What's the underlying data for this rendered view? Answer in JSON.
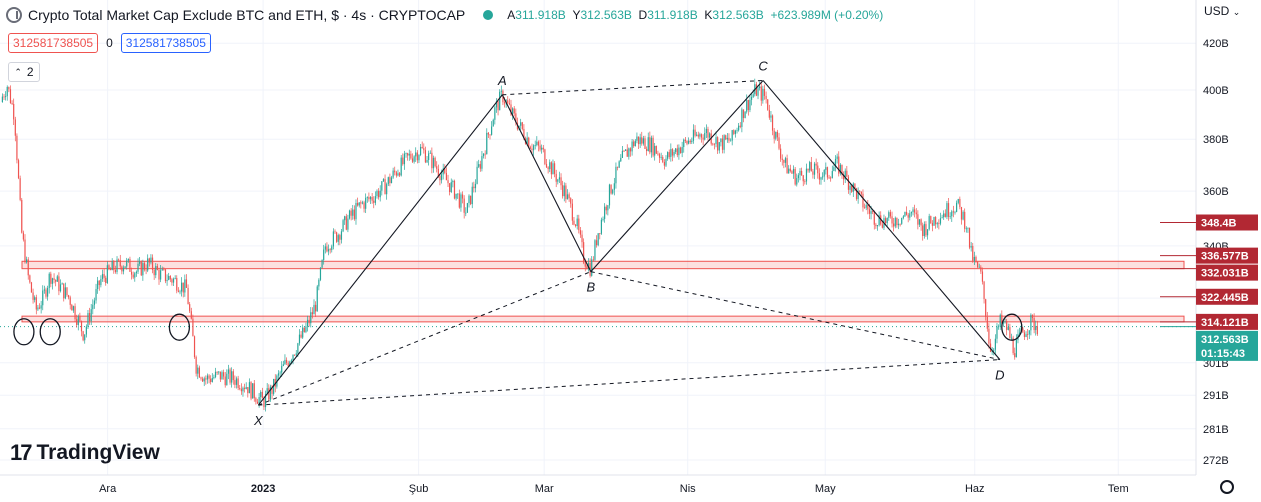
{
  "header": {
    "symbol_title": "Crypto Total Market Cap Exclude BTC and ETH, $ · 4s · CRYPTOCAP",
    "ohlc": [
      {
        "k": "A",
        "v": "311.918B"
      },
      {
        "k": "Y",
        "v": "312.563B"
      },
      {
        "k": "D",
        "v": "311.918B"
      },
      {
        "k": "K",
        "v": "312.563B"
      },
      {
        "k": "",
        "v": "+623.989M (+0.20%)"
      }
    ],
    "indicator_values": [
      "312581738505",
      "0",
      "312581738505"
    ],
    "collapse_label": "2",
    "currency": "USD",
    "brand_mark": "17",
    "brand": "TradingView"
  },
  "chart_data": {
    "type": "line",
    "title": "Crypto Total Market Cap Exclude BTC and ETH",
    "scale": "log",
    "ylim": [
      268,
      440
    ],
    "y_ticks": [
      272,
      281,
      291,
      301,
      322,
      340,
      360,
      380,
      400,
      420
    ],
    "y_tick_labels": [
      "272B",
      "281B",
      "291B",
      "301B",
      "322B",
      "340B",
      "360B",
      "380B",
      "400B",
      "420B"
    ],
    "x_ticks": [
      {
        "label": "Ara",
        "at": 0.09
      },
      {
        "label": "2023",
        "at": 0.22
      },
      {
        "label": "Şub",
        "at": 0.35
      },
      {
        "label": "Mar",
        "at": 0.455
      },
      {
        "label": "Nis",
        "at": 0.575
      },
      {
        "label": "May",
        "at": 0.69
      },
      {
        "label": "Haz",
        "at": 0.815
      },
      {
        "label": "Tem",
        "at": 0.935
      }
    ],
    "price_path": [
      [
        0.0,
        395
      ],
      [
        0.006,
        402
      ],
      [
        0.012,
        390
      ],
      [
        0.018,
        345
      ],
      [
        0.024,
        328
      ],
      [
        0.03,
        318
      ],
      [
        0.036,
        322
      ],
      [
        0.042,
        330
      ],
      [
        0.05,
        326
      ],
      [
        0.058,
        322
      ],
      [
        0.064,
        316
      ],
      [
        0.07,
        310
      ],
      [
        0.076,
        318
      ],
      [
        0.084,
        328
      ],
      [
        0.094,
        332
      ],
      [
        0.104,
        334
      ],
      [
        0.114,
        331
      ],
      [
        0.124,
        334
      ],
      [
        0.134,
        330
      ],
      [
        0.146,
        328
      ],
      [
        0.156,
        325
      ],
      [
        0.164,
        300
      ],
      [
        0.172,
        296
      ],
      [
        0.184,
        297
      ],
      [
        0.196,
        296
      ],
      [
        0.206,
        294
      ],
      [
        0.214,
        291
      ],
      [
        0.22,
        289
      ],
      [
        0.228,
        293
      ],
      [
        0.236,
        299
      ],
      [
        0.246,
        305
      ],
      [
        0.256,
        312
      ],
      [
        0.264,
        320
      ],
      [
        0.272,
        340
      ],
      [
        0.282,
        344
      ],
      [
        0.292,
        350
      ],
      [
        0.302,
        355
      ],
      [
        0.312,
        358
      ],
      [
        0.322,
        362
      ],
      [
        0.332,
        368
      ],
      [
        0.342,
        373
      ],
      [
        0.352,
        376
      ],
      [
        0.36,
        372
      ],
      [
        0.37,
        366
      ],
      [
        0.38,
        360
      ],
      [
        0.39,
        352
      ],
      [
        0.398,
        365
      ],
      [
        0.406,
        378
      ],
      [
        0.414,
        392
      ],
      [
        0.42,
        398
      ],
      [
        0.428,
        390
      ],
      [
        0.436,
        384
      ],
      [
        0.444,
        378
      ],
      [
        0.452,
        376
      ],
      [
        0.462,
        368
      ],
      [
        0.472,
        360
      ],
      [
        0.482,
        348
      ],
      [
        0.488,
        336
      ],
      [
        0.494,
        332
      ],
      [
        0.5,
        345
      ],
      [
        0.51,
        360
      ],
      [
        0.52,
        372
      ],
      [
        0.532,
        380
      ],
      [
        0.544,
        378
      ],
      [
        0.556,
        372
      ],
      [
        0.566,
        376
      ],
      [
        0.578,
        380
      ],
      [
        0.59,
        383
      ],
      [
        0.602,
        378
      ],
      [
        0.612,
        380
      ],
      [
        0.622,
        392
      ],
      [
        0.632,
        400
      ],
      [
        0.64,
        397
      ],
      [
        0.648,
        382
      ],
      [
        0.656,
        370
      ],
      [
        0.666,
        365
      ],
      [
        0.678,
        368
      ],
      [
        0.69,
        366
      ],
      [
        0.7,
        370
      ],
      [
        0.712,
        362
      ],
      [
        0.722,
        355
      ],
      [
        0.732,
        350
      ],
      [
        0.742,
        349
      ],
      [
        0.752,
        350
      ],
      [
        0.762,
        352
      ],
      [
        0.772,
        346
      ],
      [
        0.782,
        350
      ],
      [
        0.792,
        353
      ],
      [
        0.8,
        355
      ],
      [
        0.808,
        348
      ],
      [
        0.812,
        337
      ],
      [
        0.816,
        333
      ],
      [
        0.82,
        330
      ],
      [
        0.824,
        318
      ],
      [
        0.828,
        305
      ],
      [
        0.832,
        308
      ],
      [
        0.836,
        314
      ],
      [
        0.842,
        312
      ],
      [
        0.848,
        305
      ],
      [
        0.854,
        310
      ],
      [
        0.862,
        314
      ],
      [
        0.868,
        312.563
      ]
    ],
    "harmonic_points": [
      {
        "label": "X",
        "t": 0.216,
        "value": 288
      },
      {
        "label": "A",
        "t": 0.42,
        "value": 398
      },
      {
        "label": "B",
        "t": 0.494,
        "value": 331
      },
      {
        "label": "C",
        "t": 0.638,
        "value": 404
      },
      {
        "label": "D",
        "t": 0.836,
        "value": 302
      }
    ],
    "zones": [
      {
        "top": 334.6,
        "bottom": 332.031
      },
      {
        "top": 316.0,
        "bottom": 314.121
      }
    ],
    "current_price_line": 312.563,
    "price_markers": [
      {
        "value": 348.4,
        "label": "348.4B",
        "color": "#b22833"
      },
      {
        "value": 336.577,
        "label": "336.577B",
        "color": "#b22833"
      },
      {
        "value": 332.031,
        "label": "332.031B",
        "color": "#b22833"
      },
      {
        "value": 322.445,
        "label": "322.445B",
        "color": "#b22833"
      },
      {
        "value": 314.121,
        "label": "314.121B",
        "color": "#b22833"
      },
      {
        "value": 312.563,
        "label": "312.563B",
        "color": "#26a69a",
        "countdown": "01:15:43"
      }
    ],
    "circle_marks": [
      {
        "t": 0.02,
        "value": 313.5
      },
      {
        "t": 0.042,
        "value": 313.5
      },
      {
        "t": 0.15,
        "value": 315
      },
      {
        "t": 0.846,
        "value": 315
      }
    ],
    "colors": {
      "up": "#26a69a",
      "down": "#ef5350",
      "zone": "#ef5350",
      "marker": "#b22833",
      "line": "#131722"
    }
  }
}
